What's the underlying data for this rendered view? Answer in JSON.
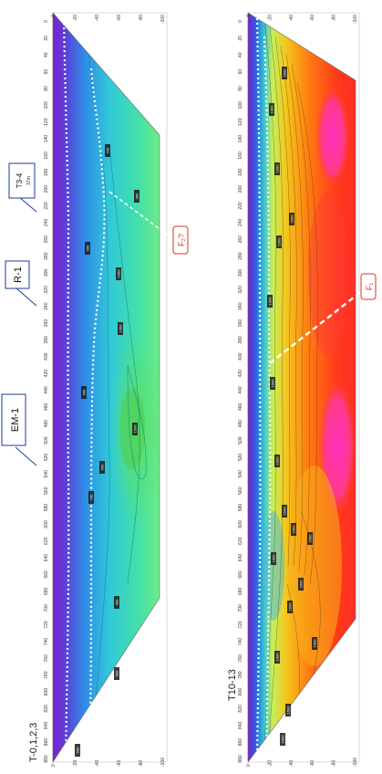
{
  "panels": [
    {
      "id": "top",
      "label": "T-0,1,2,3",
      "x_ticks": [
        "0",
        "20",
        "40",
        "60",
        "80",
        "100",
        "120",
        "140",
        "160",
        "180",
        "200",
        "220",
        "240",
        "260",
        "280",
        "300",
        "320",
        "340",
        "360",
        "380",
        "400",
        "420",
        "440",
        "460",
        "480",
        "500",
        "520",
        "540",
        "560",
        "580",
        "600",
        "620",
        "640",
        "660",
        "680",
        "700",
        "720",
        "740",
        "760",
        "780",
        "800",
        "820",
        "840",
        "860",
        "880"
      ],
      "depth_ticks": [
        "0",
        "-20",
        "-40",
        "-60",
        "-80",
        "-100"
      ],
      "contour_labels": [
        "700",
        "300",
        "900",
        "1000",
        "1500",
        "500",
        "700",
        "1300",
        "400",
        "900",
        "900",
        "500"
      ],
      "callouts": [
        {
          "name": "callout-em1",
          "text": "EM-1"
        },
        {
          "name": "callout-r1",
          "text": "R-1"
        },
        {
          "name": "callout-t34",
          "text": "T3-4",
          "sub": "37m"
        }
      ],
      "fault": "F₂?"
    },
    {
      "id": "bottom",
      "label": "T10-13",
      "x_ticks": [
        "0",
        "20",
        "40",
        "60",
        "80",
        "100",
        "120",
        "140",
        "160",
        "180",
        "200",
        "220",
        "240",
        "260",
        "280",
        "300",
        "320",
        "340",
        "360",
        "380",
        "400",
        "420",
        "440",
        "460",
        "480",
        "500",
        "520",
        "540",
        "560",
        "580",
        "600",
        "620",
        "640",
        "660",
        "680",
        "700",
        "720",
        "740",
        "760",
        "780",
        "800",
        "820",
        "840",
        "860",
        "880"
      ],
      "depth_ticks": [
        "0",
        "-20",
        "-40",
        "-60",
        "-80",
        "-100"
      ],
      "contour_labels": [
        "2000",
        "1000",
        "1500",
        "2000",
        "1500",
        "1000",
        "1000",
        "1000",
        "1500",
        "2000",
        "1000",
        "1500",
        "2000",
        "1500",
        "1000",
        "1500",
        "2000",
        "1500"
      ],
      "fault": "F₁"
    }
  ],
  "colors": {
    "resistivity_low": "#7a1fd0",
    "resistivity_high": "#ff2aa0",
    "callout_border": "#1d3b9e",
    "fault_border": "#d9322a"
  }
}
